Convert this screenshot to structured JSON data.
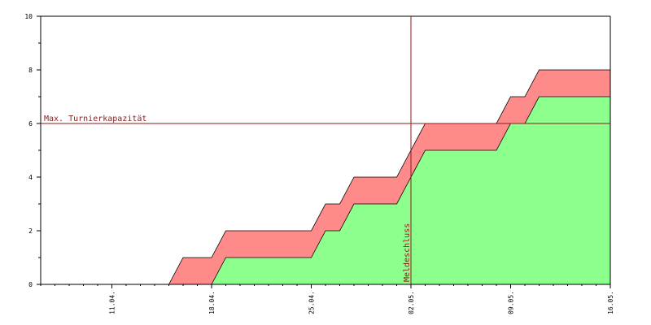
{
  "chart_data": {
    "type": "area",
    "title": "",
    "xlabel": "",
    "ylabel": "",
    "ylim": [
      0,
      10
    ],
    "xlim": [
      "2020-04-06",
      "2020-05-16"
    ],
    "x_tick_labels": [
      "11.04.",
      "18.04.",
      "25.04.",
      "02.05.",
      "09.05.",
      "16.05."
    ],
    "y_tick_labels": [
      "0",
      "2",
      "4",
      "6",
      "8",
      "10"
    ],
    "grid": false,
    "legend": "none",
    "colors": {
      "upper_fill": "#ff8a8a",
      "lower_fill": "#8cff8c",
      "annotation": "#8b1a1a",
      "axis": "#000000"
    },
    "series": [
      {
        "values_x": [
          "2020-04-15",
          "2020-04-16",
          "2020-04-18",
          "2020-04-19",
          "2020-04-25",
          "2020-04-26",
          "2020-04-27",
          "2020-04-28",
          "2020-05-01",
          "2020-05-02",
          "2020-05-03",
          "2020-05-08",
          "2020-05-09",
          "2020-05-10",
          "2020-05-11",
          "2020-05-12",
          "2020-05-16"
        ],
        "values_y": [
          0,
          1,
          1,
          2,
          2,
          3,
          3,
          4,
          4,
          5,
          6,
          6,
          7,
          7,
          8,
          8,
          8
        ]
      },
      {
        "values_x": [
          "2020-04-18",
          "2020-04-19",
          "2020-04-25",
          "2020-04-26",
          "2020-04-27",
          "2020-04-28",
          "2020-05-01",
          "2020-05-03",
          "2020-05-08",
          "2020-05-09",
          "2020-05-10",
          "2020-05-11",
          "2020-05-12",
          "2020-05-16"
        ],
        "values_y": [
          0,
          1,
          1,
          2,
          2,
          3,
          3,
          5,
          5,
          6,
          6,
          7,
          7,
          7
        ]
      }
    ],
    "annotations": [
      {
        "type": "hline",
        "y": 6,
        "label": "Max. Turnierkapazität"
      },
      {
        "type": "vline",
        "x": "2020-05-02",
        "label": "Meldeschluss"
      }
    ]
  }
}
